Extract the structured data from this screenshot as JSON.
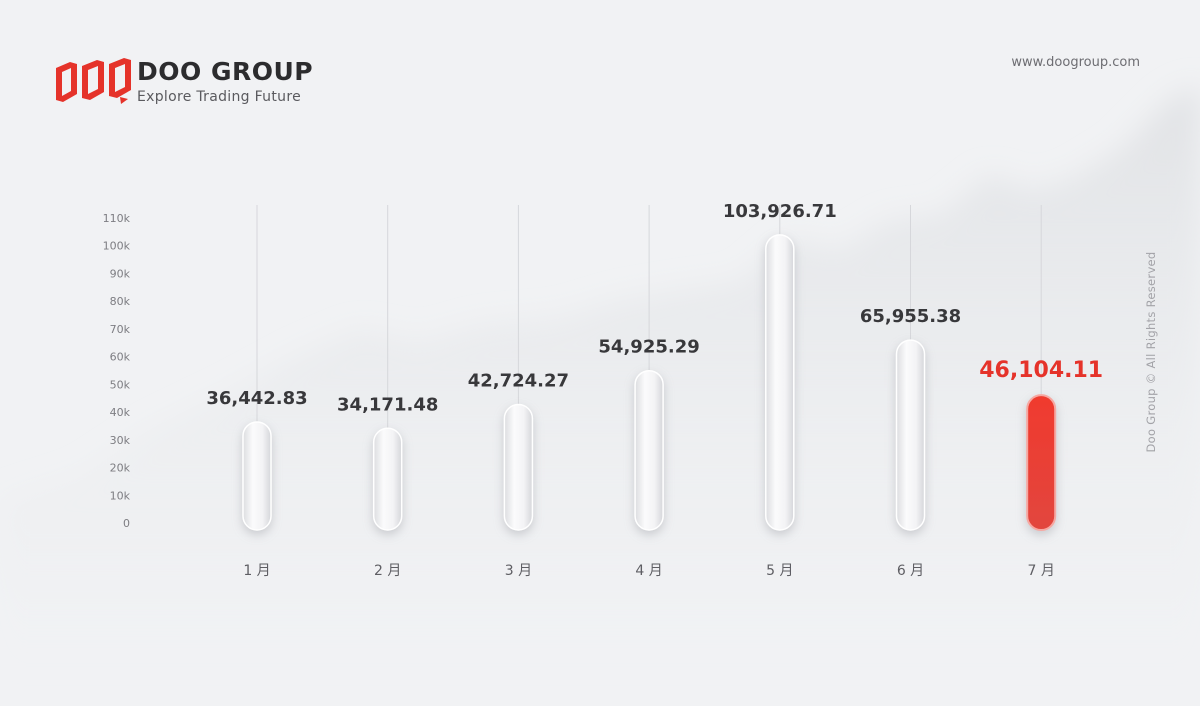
{
  "brand": {
    "name": "DOO GROUP",
    "tagline": "Explore Trading Future",
    "url": "www.doogroup.com",
    "copyright": "Doo Group © All Rights Reserved",
    "accent_color": "#e5332a",
    "logo_icon": "doo-logo-icon"
  },
  "chart_data": {
    "type": "bar",
    "categories": [
      "1 月",
      "2 月",
      "3 月",
      "4 月",
      "5 月",
      "6 月",
      "7 月"
    ],
    "values": [
      36442.83,
      34171.48,
      42724.27,
      54925.29,
      103926.71,
      65955.38,
      46104.11
    ],
    "value_labels": [
      "36,442.83",
      "34,171.48",
      "42,724.27",
      "54,925.29",
      "103,926.71",
      "65,955.38",
      "46,104.11"
    ],
    "y_ticks": [
      "0",
      "10k",
      "20k",
      "30k",
      "40k",
      "50k",
      "60k",
      "70k",
      "80k",
      "90k",
      "100k",
      "110k"
    ],
    "ylim": [
      0,
      110000
    ],
    "highlight_index": 6,
    "highlight_color": "#e5332a",
    "bar_color": "#f4f4f6",
    "title": "",
    "xlabel": "",
    "ylabel": "",
    "grid": false
  }
}
